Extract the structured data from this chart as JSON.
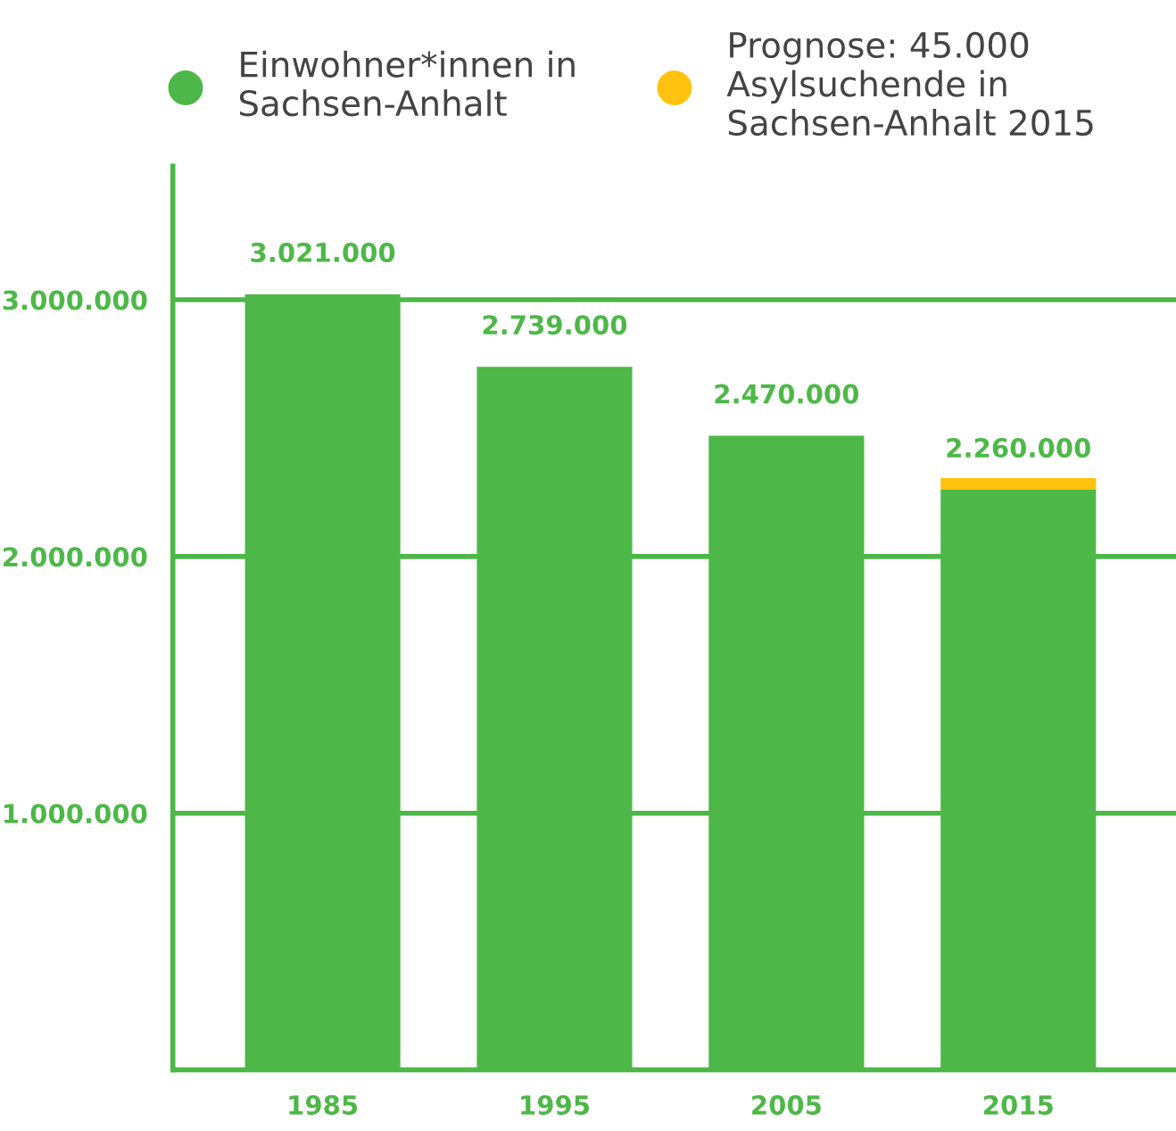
{
  "chart_data": {
    "type": "bar",
    "stacked": true,
    "categories": [
      "1985",
      "1995",
      "2005",
      "2015"
    ],
    "series": [
      {
        "name": "Einwohner*innen in\nSachsen-Anhalt",
        "color": "#4db848",
        "values": [
          3021000,
          2739000,
          2470000,
          2260000
        ],
        "value_labels": [
          "3.021.000",
          "2.739.000",
          "2.470.000",
          "2.260.000"
        ]
      },
      {
        "name": "Prognose: 45.000\nAsylsuchende in\nSachsen-Anhalt 2015",
        "color": "#ffc20e",
        "values": [
          0,
          0,
          0,
          45000
        ]
      }
    ],
    "ylim": [
      0,
      3520000
    ],
    "yticks": [
      {
        "value": 0,
        "label": null
      },
      {
        "value": 1000000,
        "label": "1.000.000"
      },
      {
        "value": 2000000,
        "label": "2.000.000"
      },
      {
        "value": 3000000,
        "label": "3.000.000"
      }
    ],
    "grid": "y",
    "legend": "top",
    "marker": "circle"
  }
}
